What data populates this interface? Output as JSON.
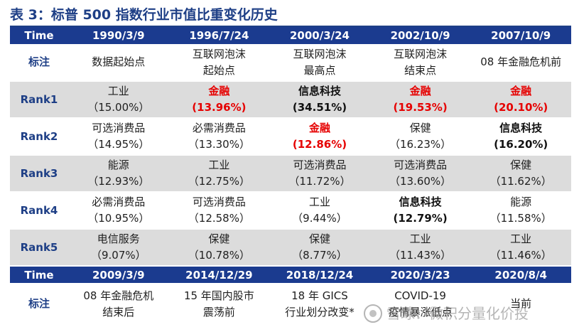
{
  "title": "表 3：标普 500 指数行业市值比重变化历史",
  "table1": {
    "header": {
      "label": "Time",
      "cols": [
        "1990/3/9",
        "1996/7/24",
        "2000/3/24",
        "2002/10/9",
        "2007/10/9"
      ]
    },
    "note": {
      "label": "标注",
      "cols": [
        [
          "数据起始点"
        ],
        [
          "互联网泡沫",
          "起始点"
        ],
        [
          "互联网泡沫",
          "最高点"
        ],
        [
          "互联网泡沫",
          "结束点"
        ],
        [
          "08 年金融危机前"
        ]
      ]
    },
    "ranks": [
      {
        "label": "Rank1",
        "cols": [
          {
            "name": "工业",
            "pct": "（15.00%）",
            "style": "normal"
          },
          {
            "name": "金融",
            "pct": "(13.96%)",
            "style": "red"
          },
          {
            "name": "信息科技",
            "pct": "(34.51%)",
            "style": "bold"
          },
          {
            "name": "金融",
            "pct": "(19.53%)",
            "style": "red"
          },
          {
            "name": "金融",
            "pct": "(20.10%)",
            "style": "red"
          }
        ]
      },
      {
        "label": "Rank2",
        "cols": [
          {
            "name": "可选消费品",
            "pct": "（14.95%）",
            "style": "normal"
          },
          {
            "name": "必需消费品",
            "pct": "（13.30%）",
            "style": "normal"
          },
          {
            "name": "金融",
            "pct": "(12.86%)",
            "style": "red"
          },
          {
            "name": "保健",
            "pct": "（16.23%）",
            "style": "normal"
          },
          {
            "name": "信息科技",
            "pct": "(16.20%)",
            "style": "bold"
          }
        ]
      },
      {
        "label": "Rank3",
        "cols": [
          {
            "name": "能源",
            "pct": "（12.93%）",
            "style": "normal"
          },
          {
            "name": "工业",
            "pct": "（12.75%）",
            "style": "normal"
          },
          {
            "name": "可选消费品",
            "pct": "（11.72%）",
            "style": "normal"
          },
          {
            "name": "可选消费品",
            "pct": "（13.60%）",
            "style": "normal"
          },
          {
            "name": "保健",
            "pct": "（11.62%）",
            "style": "normal"
          }
        ]
      },
      {
        "label": "Rank4",
        "cols": [
          {
            "name": "必需消费品",
            "pct": "（10.95%）",
            "style": "normal"
          },
          {
            "name": "可选消费品",
            "pct": "（12.58%）",
            "style": "normal"
          },
          {
            "name": "工业",
            "pct": "（9.44%）",
            "style": "normal"
          },
          {
            "name": "信息科技",
            "pct": "(12.79%)",
            "style": "bold"
          },
          {
            "name": "能源",
            "pct": "（11.58%）",
            "style": "normal"
          }
        ]
      },
      {
        "label": "Rank5",
        "cols": [
          {
            "name": "电信服务",
            "pct": "（9.07%）",
            "style": "normal"
          },
          {
            "name": "保健",
            "pct": "（10.78%）",
            "style": "normal"
          },
          {
            "name": "保健",
            "pct": "（8.77%）",
            "style": "normal"
          },
          {
            "name": "工业",
            "pct": "（11.43%）",
            "style": "normal"
          },
          {
            "name": "工业",
            "pct": "（11.46%）",
            "style": "normal"
          }
        ]
      }
    ]
  },
  "table2": {
    "header": {
      "label": "Time",
      "cols": [
        "2009/3/9",
        "2014/12/29",
        "2018/12/24",
        "2020/3/23",
        "2020/8/4"
      ]
    },
    "note": {
      "label": "标注",
      "cols": [
        [
          "08 年金融危机",
          "结束后"
        ],
        [
          "15 年国内股市",
          "震荡前"
        ],
        [
          "18 年 GICS",
          "行业划分改变*"
        ],
        [
          "COVID-19",
          "疫情暴涨低点"
        ],
        [
          "当前"
        ]
      ]
    }
  },
  "watermark": "雪球：微积分量化价投",
  "colors": {
    "header_bg": "#1b3b8f",
    "title": "#1e3f86",
    "highlight_red": "#e60000",
    "shade": "#dcdcdc"
  }
}
